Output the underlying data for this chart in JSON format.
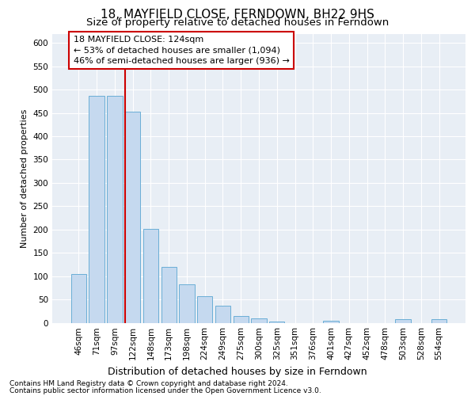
{
  "title": "18, MAYFIELD CLOSE, FERNDOWN, BH22 9HS",
  "subtitle": "Size of property relative to detached houses in Ferndown",
  "xlabel": "Distribution of detached houses by size in Ferndown",
  "ylabel": "Number of detached properties",
  "footer1": "Contains HM Land Registry data © Crown copyright and database right 2024.",
  "footer2": "Contains public sector information licensed under the Open Government Licence v3.0.",
  "bar_labels": [
    "46sqm",
    "71sqm",
    "97sqm",
    "122sqm",
    "148sqm",
    "173sqm",
    "198sqm",
    "224sqm",
    "249sqm",
    "275sqm",
    "300sqm",
    "325sqm",
    "351sqm",
    "376sqm",
    "401sqm",
    "427sqm",
    "452sqm",
    "478sqm",
    "503sqm",
    "528sqm",
    "554sqm"
  ],
  "bar_values": [
    105,
    487,
    487,
    453,
    202,
    120,
    83,
    57,
    37,
    15,
    10,
    2,
    0,
    0,
    5,
    0,
    0,
    0,
    7,
    0,
    7
  ],
  "bar_color": "#c5d9ef",
  "bar_edge_color": "#6aaed6",
  "highlight_line_index": 3,
  "highlight_line_color": "#cc0000",
  "annotation_box_color": "#cc0000",
  "annotation_text": "18 MAYFIELD CLOSE: 124sqm",
  "annotation_line1": "← 53% of detached houses are smaller (1,094)",
  "annotation_line2": "46% of semi-detached houses are larger (936) →",
  "ylim": [
    0,
    620
  ],
  "yticks": [
    0,
    50,
    100,
    150,
    200,
    250,
    300,
    350,
    400,
    450,
    500,
    550,
    600
  ],
  "fig_bg_color": "#ffffff",
  "ax_bg_color": "#e8eef5",
  "grid_color": "#ffffff",
  "title_fontsize": 11,
  "subtitle_fontsize": 9.5,
  "ylabel_fontsize": 8,
  "xlabel_fontsize": 9,
  "tick_fontsize": 7.5,
  "footer_fontsize": 6.5,
  "ann_fontsize": 8
}
